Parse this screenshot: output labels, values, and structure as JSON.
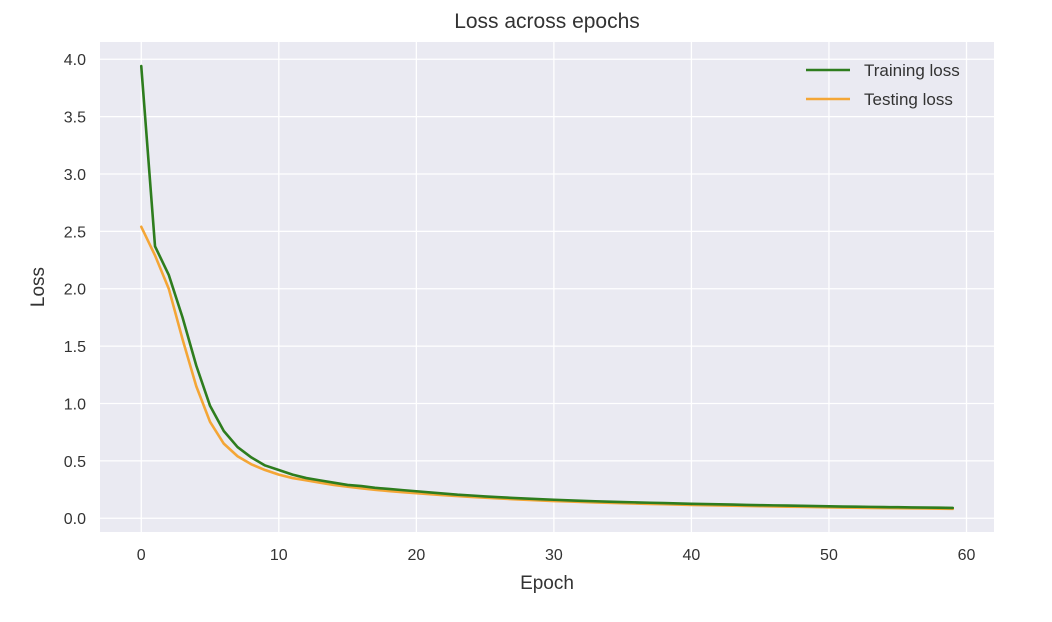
{
  "chart_data": {
    "type": "line",
    "title": "Loss across epochs",
    "xlabel": "Epoch",
    "ylabel": "Loss",
    "xlim": [
      -3,
      62
    ],
    "ylim": [
      -0.12,
      4.15
    ],
    "xticks": [
      0,
      10,
      20,
      30,
      40,
      50,
      60
    ],
    "yticks": [
      0.0,
      0.5,
      1.0,
      1.5,
      2.0,
      2.5,
      3.0,
      3.5,
      4.0
    ],
    "xtick_labels": [
      "0",
      "10",
      "20",
      "30",
      "40",
      "50",
      "60"
    ],
    "ytick_labels": [
      "0.0",
      "0.5",
      "1.0",
      "1.5",
      "2.0",
      "2.5",
      "3.0",
      "3.5",
      "4.0"
    ],
    "grid": true,
    "legend_position": "top-right",
    "x": [
      0,
      1,
      2,
      3,
      4,
      5,
      6,
      7,
      8,
      9,
      10,
      11,
      12,
      13,
      14,
      15,
      16,
      17,
      18,
      19,
      20,
      21,
      22,
      23,
      24,
      25,
      26,
      27,
      28,
      29,
      30,
      31,
      32,
      33,
      34,
      35,
      36,
      37,
      38,
      39,
      40,
      41,
      42,
      43,
      44,
      45,
      46,
      47,
      48,
      49,
      50,
      51,
      52,
      53,
      54,
      55,
      56,
      57,
      58,
      59
    ],
    "series": [
      {
        "name": "Training loss",
        "color": "#2e7d1e",
        "values": [
          3.94,
          2.37,
          2.12,
          1.75,
          1.33,
          0.98,
          0.76,
          0.62,
          0.53,
          0.46,
          0.42,
          0.38,
          0.35,
          0.33,
          0.31,
          0.29,
          0.28,
          0.265,
          0.255,
          0.245,
          0.235,
          0.225,
          0.215,
          0.205,
          0.198,
          0.19,
          0.183,
          0.177,
          0.171,
          0.166,
          0.161,
          0.156,
          0.152,
          0.148,
          0.144,
          0.141,
          0.138,
          0.135,
          0.132,
          0.129,
          0.126,
          0.123,
          0.121,
          0.119,
          0.116,
          0.114,
          0.112,
          0.11,
          0.108,
          0.106,
          0.104,
          0.102,
          0.101,
          0.099,
          0.097,
          0.096,
          0.094,
          0.093,
          0.092,
          0.09
        ]
      },
      {
        "name": "Testing loss",
        "color": "#f4a636",
        "values": [
          2.54,
          2.29,
          2.0,
          1.56,
          1.15,
          0.84,
          0.65,
          0.54,
          0.47,
          0.42,
          0.38,
          0.35,
          0.33,
          0.31,
          0.29,
          0.275,
          0.26,
          0.248,
          0.237,
          0.227,
          0.218,
          0.209,
          0.201,
          0.193,
          0.186,
          0.179,
          0.172,
          0.166,
          0.16,
          0.155,
          0.15,
          0.146,
          0.142,
          0.138,
          0.134,
          0.131,
          0.128,
          0.125,
          0.122,
          0.119,
          0.116,
          0.113,
          0.111,
          0.109,
          0.107,
          0.105,
          0.103,
          0.101,
          0.099,
          0.097,
          0.095,
          0.093,
          0.092,
          0.09,
          0.089,
          0.087,
          0.086,
          0.085,
          0.083,
          0.082
        ]
      }
    ]
  }
}
